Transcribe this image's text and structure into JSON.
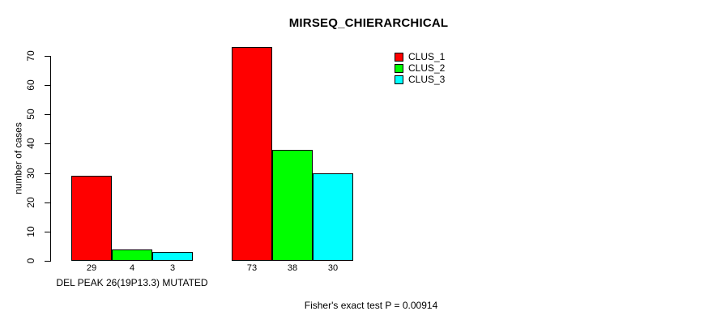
{
  "title": "MIRSEQ_CHIERARCHICAL",
  "chart_data": {
    "type": "bar",
    "title": "MIRSEQ_CHIERARCHICAL",
    "ylabel": "number of cases",
    "xlabel": "",
    "ylim": [
      0,
      70
    ],
    "yticks": [
      0,
      10,
      20,
      30,
      40,
      50,
      60,
      70
    ],
    "grid": false,
    "legend_position": "top-right",
    "categories": [
      "DEL PEAK 26(19P13.3) MUTATED",
      ""
    ],
    "series": [
      {
        "name": "CLUS_1",
        "color": "#ff0000",
        "values": [
          29,
          73
        ]
      },
      {
        "name": "CLUS_2",
        "color": "#00ff00",
        "values": [
          4,
          38
        ]
      },
      {
        "name": "CLUS_3",
        "color": "#00ffff",
        "values": [
          3,
          30
        ]
      }
    ],
    "bar_values_shown": true,
    "annotation": "Fisher's exact test P = 0.00914"
  },
  "colors": {
    "background": "#ffffff",
    "axis": "#000000",
    "text": "#000000"
  }
}
